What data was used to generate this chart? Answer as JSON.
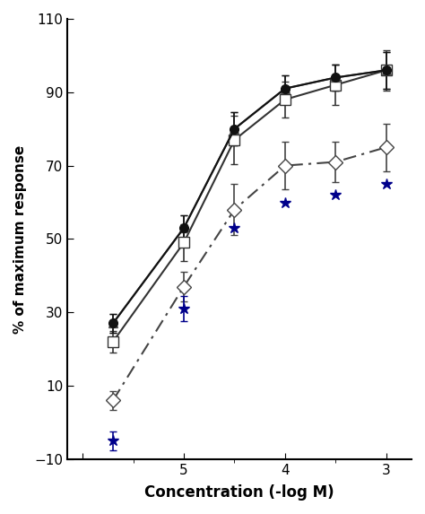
{
  "x_values": [
    5.7,
    5.0,
    4.5,
    4.0,
    3.5,
    3.0
  ],
  "series": {
    "filled_circle": {
      "y": [
        27,
        53,
        80,
        91,
        94,
        96
      ],
      "yerr": [
        2.5,
        3.5,
        4.5,
        3.5,
        3.5,
        5.0
      ],
      "color": "#111111",
      "marker": "o",
      "markerfacecolor": "#111111",
      "markeredgecolor": "#111111",
      "linestyle": "-",
      "linewidth": 1.5,
      "markersize": 7
    },
    "filled_triangle": {
      "y": [
        27,
        53,
        80,
        91,
        94,
        96
      ],
      "yerr": [
        2.5,
        3.5,
        4.5,
        3.5,
        3.5,
        5.0
      ],
      "color": "#555555",
      "marker": "^",
      "markerfacecolor": "#555555",
      "markeredgecolor": "#555555",
      "linestyle": "-",
      "linewidth": 1.5,
      "markersize": 7
    },
    "open_square": {
      "y": [
        22,
        49,
        77,
        88,
        92,
        96
      ],
      "yerr": [
        3.0,
        5.0,
        6.5,
        5.0,
        5.5,
        5.5
      ],
      "color": "#333333",
      "marker": "s",
      "markerfacecolor": "white",
      "markeredgecolor": "#333333",
      "linestyle": "-",
      "linewidth": 1.5,
      "markersize": 8
    },
    "open_diamond": {
      "y": [
        6,
        37,
        58,
        70,
        71,
        75
      ],
      "yerr": [
        2.5,
        4.0,
        7.0,
        6.5,
        5.5,
        6.5
      ],
      "color": "#444444",
      "marker": "D",
      "markerfacecolor": "white",
      "markeredgecolor": "#444444",
      "linestyle": "-.",
      "linewidth": 1.5,
      "markersize": 8
    },
    "star": {
      "y": [
        -5,
        31,
        53,
        60,
        62,
        65
      ],
      "yerr": [
        2.5,
        3.5,
        0,
        0,
        0,
        0
      ],
      "color": "#00008B",
      "marker": "*",
      "markerfacecolor": "#00008B",
      "markeredgecolor": "#00008B",
      "linestyle": "none",
      "linewidth": 0,
      "markersize": 9
    }
  },
  "xlim": [
    6.15,
    2.75
  ],
  "ylim": [
    -10,
    110
  ],
  "yticks": [
    -10,
    10,
    30,
    50,
    70,
    90,
    110
  ],
  "xticks": [
    6,
    5,
    4,
    3
  ],
  "xticklabels": [
    "",
    "5",
    "4",
    "3"
  ],
  "xlabel": "Concentration (-log M)",
  "ylabel": "% of maximum response",
  "figsize": [
    4.74,
    5.73
  ],
  "dpi": 100,
  "capsize": 3,
  "elinewidth": 1.2
}
